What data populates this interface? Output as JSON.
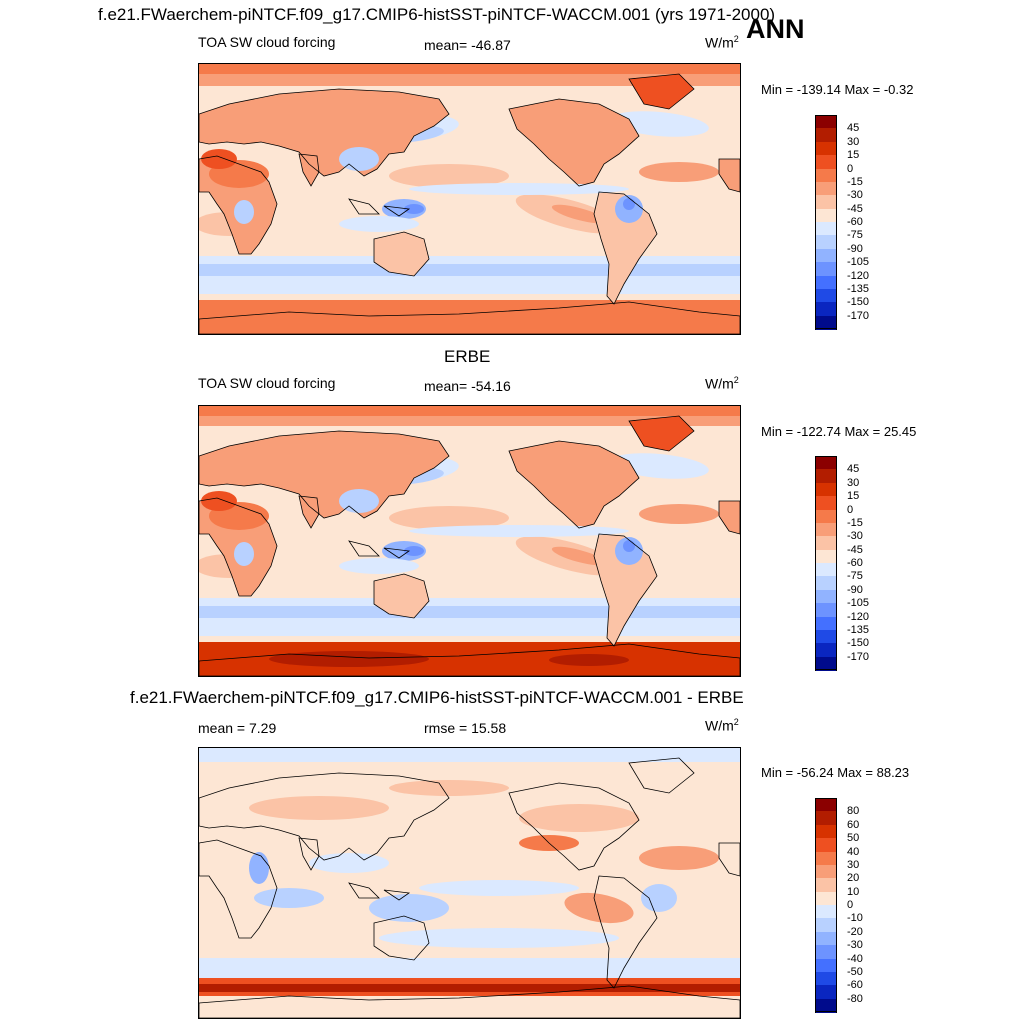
{
  "header": {
    "title": "f.e21.FWaerchem-piNTCF.f09_g17.CMIP6-histSST-piNTCF-WACCM.001 (yrs 1971-2000)",
    "season": "ANN"
  },
  "panels": [
    {
      "id": "model",
      "section_title": "",
      "left_label": "TOA SW cloud forcing",
      "center_label": "mean= -46.87",
      "units": "W/m",
      "units_exp": "2",
      "minmax": "Min = -139.14 Max =  -0.32",
      "colorbar": {
        "labels": [
          "45",
          "30",
          "15",
          "0",
          "-15",
          "-30",
          "-45",
          "-60",
          "-75",
          "-90",
          "-105",
          "-120",
          "-135",
          "-150",
          "-170"
        ],
        "colors": [
          "#8b0000",
          "#b21d00",
          "#d73200",
          "#ee5021",
          "#f57a4a",
          "#f89e78",
          "#fbc3a6",
          "#fde6d4",
          "#dbe9ff",
          "#b8d1ff",
          "#91b3ff",
          "#6d93ff",
          "#4470ff",
          "#1f4ae6",
          "#0a26c0",
          "#000b8c"
        ]
      },
      "field": {
        "base": "#fde6d4",
        "style": "model"
      }
    },
    {
      "id": "obs",
      "section_title": "ERBE",
      "left_label": "TOA SW cloud forcing",
      "center_label": "mean= -54.16",
      "units": "W/m",
      "units_exp": "2",
      "minmax": "Min = -122.74 Max =  25.45",
      "colorbar": {
        "labels": [
          "45",
          "30",
          "15",
          "0",
          "-15",
          "-30",
          "-45",
          "-60",
          "-75",
          "-90",
          "-105",
          "-120",
          "-135",
          "-150",
          "-170"
        ],
        "colors": [
          "#8b0000",
          "#b21d00",
          "#d73200",
          "#ee5021",
          "#f57a4a",
          "#f89e78",
          "#fbc3a6",
          "#fde6d4",
          "#dbe9ff",
          "#b8d1ff",
          "#91b3ff",
          "#6d93ff",
          "#4470ff",
          "#1f4ae6",
          "#0a26c0",
          "#000b8c"
        ]
      },
      "field": {
        "base": "#fde6d4",
        "style": "obs"
      }
    },
    {
      "id": "diff",
      "section_title": "f.e21.FWaerchem-piNTCF.f09_g17.CMIP6-histSST-piNTCF-WACCM.001 - ERBE",
      "left_label": "mean =   7.29",
      "center_label": "rmse =  15.58",
      "units": "W/m",
      "units_exp": "2",
      "minmax": "Min = -56.24 Max =  88.23",
      "colorbar": {
        "labels": [
          "80",
          "60",
          "50",
          "40",
          "30",
          "20",
          "10",
          "0",
          "-10",
          "-20",
          "-30",
          "-40",
          "-50",
          "-60",
          "-80"
        ],
        "colors": [
          "#8b0000",
          "#b21d00",
          "#d73200",
          "#ee5021",
          "#f57a4a",
          "#f89e78",
          "#fbc3a6",
          "#fde6d4",
          "#dbe9ff",
          "#b8d1ff",
          "#91b3ff",
          "#6d93ff",
          "#4470ff",
          "#1f4ae6",
          "#0a26c0",
          "#000b8c"
        ]
      },
      "field": {
        "base": "#fde6d4",
        "style": "diff"
      }
    }
  ]
}
